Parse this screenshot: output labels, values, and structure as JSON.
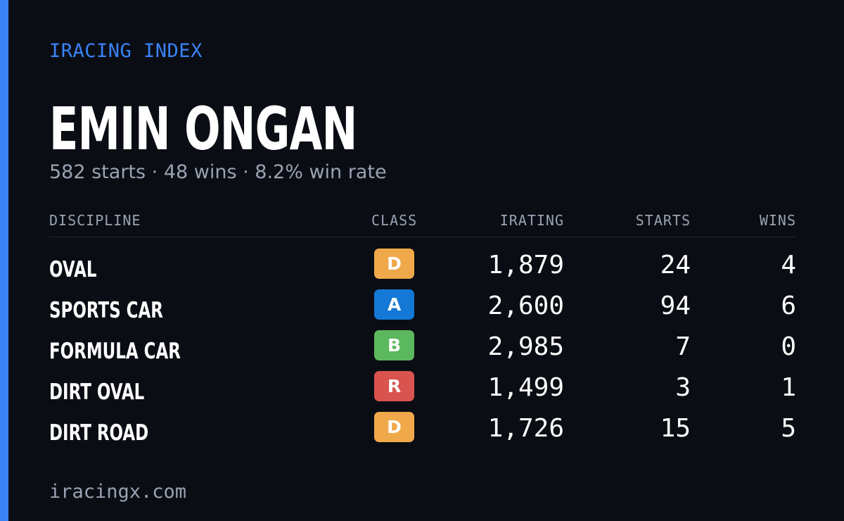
{
  "header": {
    "brand": "IRACING INDEX",
    "driver_name": "EMIN ONGAN",
    "summary": "582 starts · 48 wins · 8.2% win rate"
  },
  "table": {
    "columns": {
      "discipline": "DISCIPLINE",
      "class": "CLASS",
      "irating": "IRATING",
      "starts": "STARTS",
      "wins": "WINS"
    },
    "rows": [
      {
        "discipline": "OVAL",
        "class": "D",
        "class_color": "#f0a94a",
        "irating": "1,879",
        "starts": "24",
        "wins": "4"
      },
      {
        "discipline": "SPORTS CAR",
        "class": "A",
        "class_color": "#1479d6",
        "irating": "2,600",
        "starts": "94",
        "wins": "6"
      },
      {
        "discipline": "FORMULA CAR",
        "class": "B",
        "class_color": "#5cb85c",
        "irating": "2,985",
        "starts": "7",
        "wins": "0"
      },
      {
        "discipline": "DIRT OVAL",
        "class": "R",
        "class_color": "#d9534f",
        "irating": "1,499",
        "starts": "3",
        "wins": "1"
      },
      {
        "discipline": "DIRT ROAD",
        "class": "D",
        "class_color": "#f0a94a",
        "irating": "1,726",
        "starts": "15",
        "wins": "5"
      }
    ]
  },
  "footer": {
    "site": "iracingx.com"
  },
  "colors": {
    "accent": "#3b82f6",
    "background": "#0a0d14",
    "muted_text": "#9aa3b2"
  }
}
